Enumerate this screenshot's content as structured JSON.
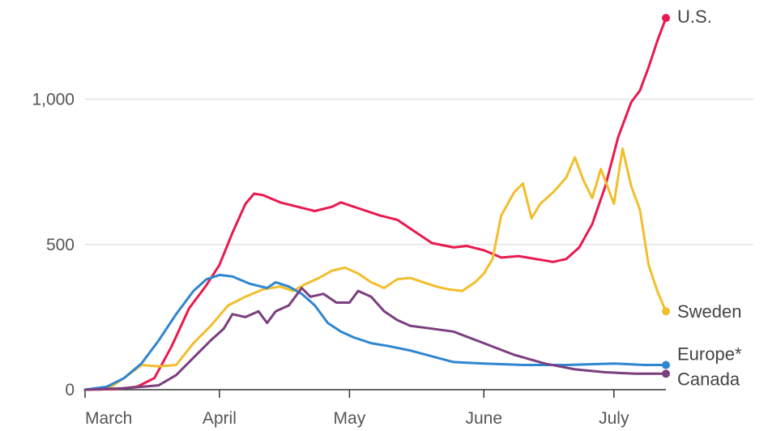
{
  "chart_data": {
    "type": "line",
    "title": "",
    "xlabel": "",
    "ylabel": "",
    "x_axis": {
      "type": "date",
      "range": [
        "2020-03-01",
        "2020-07-13"
      ],
      "ticks": [
        {
          "date": "2020-03-01",
          "label": "March"
        },
        {
          "date": "2020-04-01",
          "label": "April"
        },
        {
          "date": "2020-05-01",
          "label": "May"
        },
        {
          "date": "2020-06-01",
          "label": "June"
        },
        {
          "date": "2020-07-01",
          "label": "July"
        }
      ]
    },
    "y_axis": {
      "range": [
        0,
        1300
      ],
      "ticks": [
        {
          "value": 0,
          "label": "0"
        },
        {
          "value": 500,
          "label": "500"
        },
        {
          "value": 1000,
          "label": "1,000"
        }
      ]
    },
    "grid": true,
    "legend": "direct labels at line ends",
    "series": [
      {
        "name": "U.S.",
        "color": "#e8194f",
        "points": [
          [
            "2020-03-01",
            0
          ],
          [
            "2020-03-08",
            2
          ],
          [
            "2020-03-13",
            10
          ],
          [
            "2020-03-17",
            40
          ],
          [
            "2020-03-21",
            150
          ],
          [
            "2020-03-25",
            280
          ],
          [
            "2020-03-29",
            360
          ],
          [
            "2020-04-01",
            430
          ],
          [
            "2020-04-04",
            540
          ],
          [
            "2020-04-07",
            640
          ],
          [
            "2020-04-09",
            675
          ],
          [
            "2020-04-11",
            670
          ],
          [
            "2020-04-15",
            645
          ],
          [
            "2020-04-19",
            630
          ],
          [
            "2020-04-23",
            615
          ],
          [
            "2020-04-27",
            630
          ],
          [
            "2020-04-29",
            645
          ],
          [
            "2020-05-03",
            625
          ],
          [
            "2020-05-08",
            600
          ],
          [
            "2020-05-12",
            585
          ],
          [
            "2020-05-16",
            545
          ],
          [
            "2020-05-20",
            505
          ],
          [
            "2020-05-25",
            490
          ],
          [
            "2020-05-28",
            495
          ],
          [
            "2020-06-01",
            480
          ],
          [
            "2020-06-05",
            455
          ],
          [
            "2020-06-09",
            460
          ],
          [
            "2020-06-13",
            450
          ],
          [
            "2020-06-17",
            440
          ],
          [
            "2020-06-20",
            450
          ],
          [
            "2020-06-23",
            490
          ],
          [
            "2020-06-26",
            570
          ],
          [
            "2020-06-29",
            700
          ],
          [
            "2020-07-02",
            870
          ],
          [
            "2020-07-05",
            990
          ],
          [
            "2020-07-07",
            1030
          ],
          [
            "2020-07-09",
            1110
          ],
          [
            "2020-07-11",
            1200
          ],
          [
            "2020-07-13",
            1280
          ]
        ]
      },
      {
        "name": "Sweden",
        "color": "#f2be2c",
        "points": [
          [
            "2020-03-01",
            0
          ],
          [
            "2020-03-07",
            10
          ],
          [
            "2020-03-10",
            40
          ],
          [
            "2020-03-14",
            85
          ],
          [
            "2020-03-18",
            80
          ],
          [
            "2020-03-22",
            85
          ],
          [
            "2020-03-26",
            160
          ],
          [
            "2020-03-30",
            220
          ],
          [
            "2020-04-03",
            290
          ],
          [
            "2020-04-07",
            320
          ],
          [
            "2020-04-11",
            345
          ],
          [
            "2020-04-15",
            355
          ],
          [
            "2020-04-18",
            340
          ],
          [
            "2020-04-21",
            365
          ],
          [
            "2020-04-24",
            385
          ],
          [
            "2020-04-27",
            410
          ],
          [
            "2020-04-30",
            420
          ],
          [
            "2020-05-03",
            400
          ],
          [
            "2020-05-06",
            370
          ],
          [
            "2020-05-09",
            350
          ],
          [
            "2020-05-12",
            380
          ],
          [
            "2020-05-15",
            385
          ],
          [
            "2020-05-18",
            370
          ],
          [
            "2020-05-21",
            355
          ],
          [
            "2020-05-24",
            345
          ],
          [
            "2020-05-27",
            340
          ],
          [
            "2020-05-30",
            370
          ],
          [
            "2020-06-01",
            400
          ],
          [
            "2020-06-03",
            450
          ],
          [
            "2020-06-05",
            600
          ],
          [
            "2020-06-08",
            680
          ],
          [
            "2020-06-10",
            710
          ],
          [
            "2020-06-12",
            590
          ],
          [
            "2020-06-14",
            640
          ],
          [
            "2020-06-17",
            680
          ],
          [
            "2020-06-20",
            730
          ],
          [
            "2020-06-22",
            800
          ],
          [
            "2020-06-24",
            720
          ],
          [
            "2020-06-26",
            660
          ],
          [
            "2020-06-28",
            760
          ],
          [
            "2020-07-01",
            640
          ],
          [
            "2020-07-03",
            830
          ],
          [
            "2020-07-05",
            700
          ],
          [
            "2020-07-07",
            620
          ],
          [
            "2020-07-09",
            430
          ],
          [
            "2020-07-11",
            340
          ],
          [
            "2020-07-13",
            270
          ]
        ]
      },
      {
        "name": "Europe*",
        "color": "#2f86d0",
        "points": [
          [
            "2020-03-01",
            0
          ],
          [
            "2020-03-06",
            10
          ],
          [
            "2020-03-10",
            40
          ],
          [
            "2020-03-14",
            90
          ],
          [
            "2020-03-18",
            170
          ],
          [
            "2020-03-22",
            260
          ],
          [
            "2020-03-26",
            340
          ],
          [
            "2020-03-29",
            380
          ],
          [
            "2020-04-01",
            395
          ],
          [
            "2020-04-04",
            390
          ],
          [
            "2020-04-08",
            365
          ],
          [
            "2020-04-12",
            350
          ],
          [
            "2020-04-14",
            370
          ],
          [
            "2020-04-17",
            355
          ],
          [
            "2020-04-20",
            330
          ],
          [
            "2020-04-23",
            290
          ],
          [
            "2020-04-26",
            230
          ],
          [
            "2020-04-29",
            200
          ],
          [
            "2020-05-02",
            180
          ],
          [
            "2020-05-06",
            160
          ],
          [
            "2020-05-10",
            150
          ],
          [
            "2020-05-15",
            135
          ],
          [
            "2020-05-20",
            115
          ],
          [
            "2020-05-25",
            95
          ],
          [
            "2020-06-01",
            90
          ],
          [
            "2020-06-10",
            85
          ],
          [
            "2020-06-20",
            85
          ],
          [
            "2020-07-01",
            90
          ],
          [
            "2020-07-08",
            85
          ],
          [
            "2020-07-13",
            85
          ]
        ]
      },
      {
        "name": "Canada",
        "color": "#7a3f7e",
        "points": [
          [
            "2020-03-01",
            0
          ],
          [
            "2020-03-10",
            5
          ],
          [
            "2020-03-18",
            15
          ],
          [
            "2020-03-22",
            50
          ],
          [
            "2020-03-26",
            110
          ],
          [
            "2020-03-30",
            170
          ],
          [
            "2020-04-02",
            210
          ],
          [
            "2020-04-04",
            260
          ],
          [
            "2020-04-07",
            250
          ],
          [
            "2020-04-10",
            270
          ],
          [
            "2020-04-12",
            230
          ],
          [
            "2020-04-14",
            270
          ],
          [
            "2020-04-17",
            290
          ],
          [
            "2020-04-20",
            350
          ],
          [
            "2020-04-22",
            320
          ],
          [
            "2020-04-25",
            330
          ],
          [
            "2020-04-28",
            300
          ],
          [
            "2020-05-01",
            300
          ],
          [
            "2020-05-03",
            340
          ],
          [
            "2020-05-06",
            320
          ],
          [
            "2020-05-09",
            270
          ],
          [
            "2020-05-12",
            240
          ],
          [
            "2020-05-15",
            220
          ],
          [
            "2020-05-20",
            210
          ],
          [
            "2020-05-25",
            200
          ],
          [
            "2020-06-01",
            160
          ],
          [
            "2020-06-08",
            120
          ],
          [
            "2020-06-15",
            90
          ],
          [
            "2020-06-22",
            70
          ],
          [
            "2020-06-29",
            60
          ],
          [
            "2020-07-06",
            55
          ],
          [
            "2020-07-13",
            55
          ]
        ]
      }
    ]
  }
}
